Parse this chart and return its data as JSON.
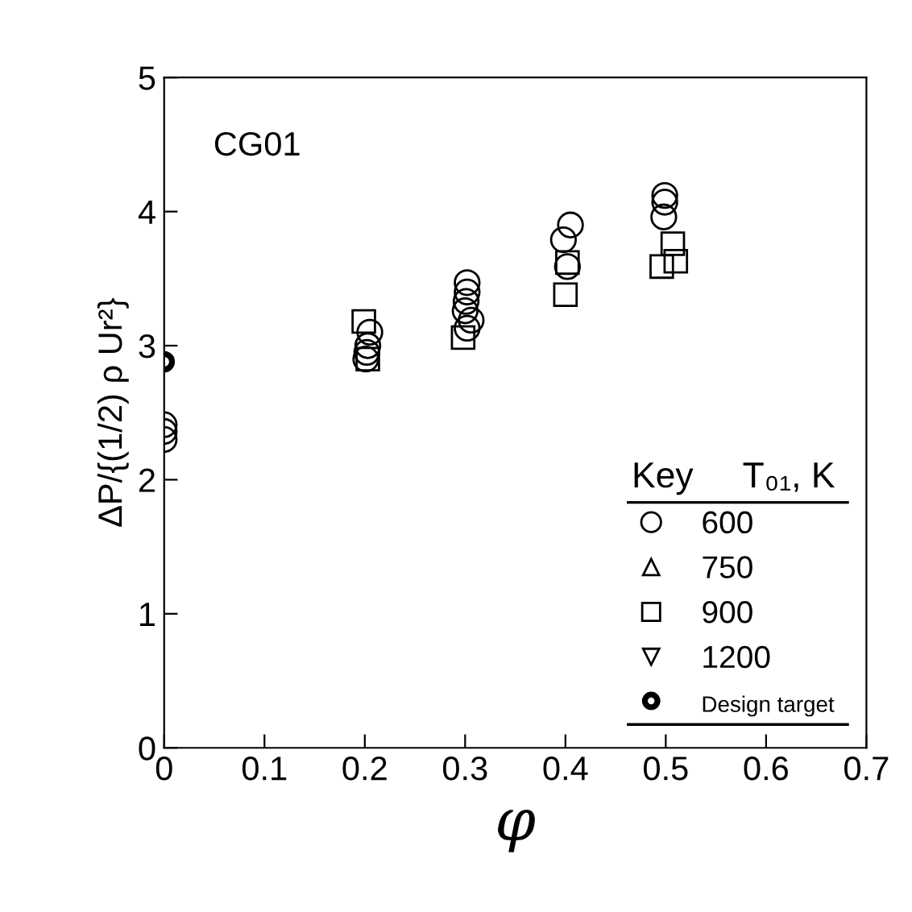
{
  "chart_data": {
    "type": "scatter",
    "xlabel": "φ",
    "ylabel": "ΔP/{(1/2) ρ Ur²}",
    "annotations": [
      "CG01"
    ],
    "legend_title": "Key     T₀₁, K",
    "legend": "bottom right",
    "grid": false,
    "xlim": [
      0,
      0.7
    ],
    "ylim": [
      0,
      5
    ],
    "xticks": [
      0,
      0.1,
      0.2,
      0.3,
      0.4,
      0.5,
      0.6,
      0.7
    ],
    "yticks": [
      0,
      1,
      2,
      3,
      4,
      5
    ],
    "series": [
      {
        "name": "600",
        "color": "#000000",
        "marker": "circle",
        "x": [
          0,
          0,
          0,
          0.205,
          0.203,
          0.202,
          0.201,
          0.302,
          0.302,
          0.301,
          0.3,
          0.306,
          0.302,
          0.405,
          0.398,
          0.402,
          0.499,
          0.499,
          0.498
        ],
        "values": [
          2.41,
          2.36,
          2.3,
          3.1,
          3.0,
          2.95,
          2.9,
          3.47,
          3.4,
          3.33,
          3.26,
          3.19,
          3.13,
          3.9,
          3.79,
          3.59,
          4.12,
          4.07,
          3.96
        ]
      },
      {
        "name": "750",
        "color": "#000000",
        "marker": "triangle"
      },
      {
        "name": "900",
        "color": "#000000",
        "marker": "square",
        "x": [
          0.199,
          0.203,
          0.298,
          0.402,
          0.4,
          0.507,
          0.51,
          0.496
        ],
        "values": [
          3.18,
          2.9,
          3.06,
          3.62,
          3.38,
          3.76,
          3.63,
          3.59
        ]
      },
      {
        "name": "1200",
        "color": "#000000",
        "marker": "triangle_down"
      },
      {
        "name": "Design target",
        "color": "#000000",
        "marker": "bold_circle",
        "x": [
          0
        ],
        "values": [
          2.88
        ]
      }
    ]
  }
}
